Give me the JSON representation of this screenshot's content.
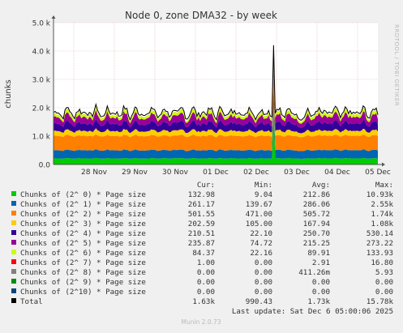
{
  "title": "Node 0, zone DMA32 - by week",
  "watermark": "RRDTOOL / TOBI OETIKER",
  "footer": "Munin 2.0.73",
  "last_update": "Last update: Sat Dec  6 05:00:06 2025",
  "legend_headers": {
    "cur": "Cur:",
    "min": "Min:",
    "avg": "Avg:",
    "max": "Max:"
  },
  "colors": {
    "background": "#f0f0f0",
    "plot": "#ffffff",
    "grid": "#e7b1b1",
    "total": "#000000"
  },
  "chart_data": {
    "type": "area",
    "title": "Node 0, zone DMA32 - by week",
    "ylabel": "chunks",
    "ylim": [
      0,
      5000
    ],
    "yticks": [
      {
        "value": 0,
        "label": "0.0"
      },
      {
        "value": 1000,
        "label": "1.0 k"
      },
      {
        "value": 2000,
        "label": "2.0 k"
      },
      {
        "value": 3000,
        "label": "3.0 k"
      },
      {
        "value": 4000,
        "label": "4.0 k"
      },
      {
        "value": 5000,
        "label": "5.0 k"
      }
    ],
    "xticks": [
      "28 Nov",
      "29 Nov",
      "30 Nov",
      "01 Dec",
      "02 Dec",
      "03 Dec",
      "04 Dec",
      "05 Dec"
    ],
    "series": [
      {
        "name": "Chunks of (2^ 0) * Page size",
        "color": "#00cc00",
        "cur": "132.98",
        "min": "9.04",
        "avg": "212.86",
        "max": "10.93k",
        "level": 213
      },
      {
        "name": "Chunks of (2^ 1) * Page size",
        "color": "#0066b3",
        "cur": "261.17",
        "min": "139.67",
        "avg": "286.06",
        "max": "2.55k",
        "level": 286
      },
      {
        "name": "Chunks of (2^ 2) * Page size",
        "color": "#ff8000",
        "cur": "501.55",
        "min": "471.00",
        "avg": "505.72",
        "max": "1.74k",
        "level": 506
      },
      {
        "name": "Chunks of (2^ 3) * Page size",
        "color": "#ffcc00",
        "cur": "202.59",
        "min": "105.00",
        "avg": "167.94",
        "max": "1.08k",
        "level": 168
      },
      {
        "name": "Chunks of (2^ 4) * Page size",
        "color": "#330099",
        "cur": "210.51",
        "min": "22.10",
        "avg": "250.70",
        "max": "530.14",
        "level": 251
      },
      {
        "name": "Chunks of (2^ 5) * Page size",
        "color": "#990099",
        "cur": "235.87",
        "min": "74.72",
        "avg": "215.25",
        "max": "273.22",
        "level": 215
      },
      {
        "name": "Chunks of (2^ 6) * Page size",
        "color": "#ccff00",
        "cur": "84.37",
        "min": "22.16",
        "avg": "89.91",
        "max": "133.93",
        "level": 90
      },
      {
        "name": "Chunks of (2^ 7) * Page size",
        "color": "#ff0000",
        "cur": "1.00",
        "min": "0.00",
        "avg": "2.91",
        "max": "16.80",
        "level": 3
      },
      {
        "name": "Chunks of (2^ 8) * Page size",
        "color": "#808080",
        "cur": "0.00",
        "min": "0.00",
        "avg": "411.26m",
        "max": "5.93",
        "level": 0
      },
      {
        "name": "Chunks of (2^ 9) * Page size",
        "color": "#008f00",
        "cur": "0.00",
        "min": "0.00",
        "avg": "0.00",
        "max": "0.00",
        "level": 0
      },
      {
        "name": "Chunks of (2^10) * Page size",
        "color": "#00487d",
        "cur": "0.00",
        "min": "0.00",
        "avg": "0.00",
        "max": "0.00",
        "level": 0
      },
      {
        "name": "Total",
        "color": "#000000",
        "cur": "1.63k",
        "min": "990.43",
        "avg": "1.73k",
        "max": "15.78k",
        "level": 1730
      }
    ]
  }
}
